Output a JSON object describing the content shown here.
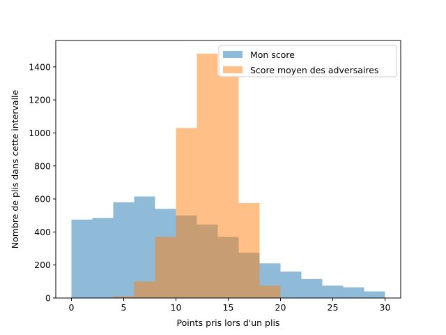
{
  "chart_data": {
    "type": "bar",
    "subtype": "overlaid-histogram",
    "title": "",
    "xlabel": "Points pris lors d'un plis",
    "ylabel": "Nombre de plis dans cette intervalle",
    "xlim": [
      -1.5,
      31.5
    ],
    "ylim": [
      0,
      1560
    ],
    "xticks": [
      0,
      5,
      10,
      15,
      20,
      25,
      30
    ],
    "yticks": [
      0,
      200,
      400,
      600,
      800,
      1000,
      1200,
      1400
    ],
    "legend_position": "top-right",
    "grid": false,
    "bin_edges": [
      0,
      2,
      4,
      6,
      8,
      10,
      12,
      14,
      16,
      18,
      20,
      22,
      24,
      26,
      28,
      30
    ],
    "series": [
      {
        "name": "Mon score",
        "color": "#1f77b4",
        "opacity": 0.5,
        "values": [
          475,
          485,
          580,
          615,
          540,
          500,
          445,
          370,
          275,
          210,
          160,
          115,
          75,
          65,
          40
        ]
      },
      {
        "name": "Score moyen des adversaires",
        "color": "#ff7f0e",
        "opacity": 0.5,
        "values": [
          0,
          0,
          10,
          100,
          370,
          1030,
          1480,
          1350,
          575,
          75,
          0,
          0,
          0,
          0,
          0
        ]
      }
    ]
  }
}
